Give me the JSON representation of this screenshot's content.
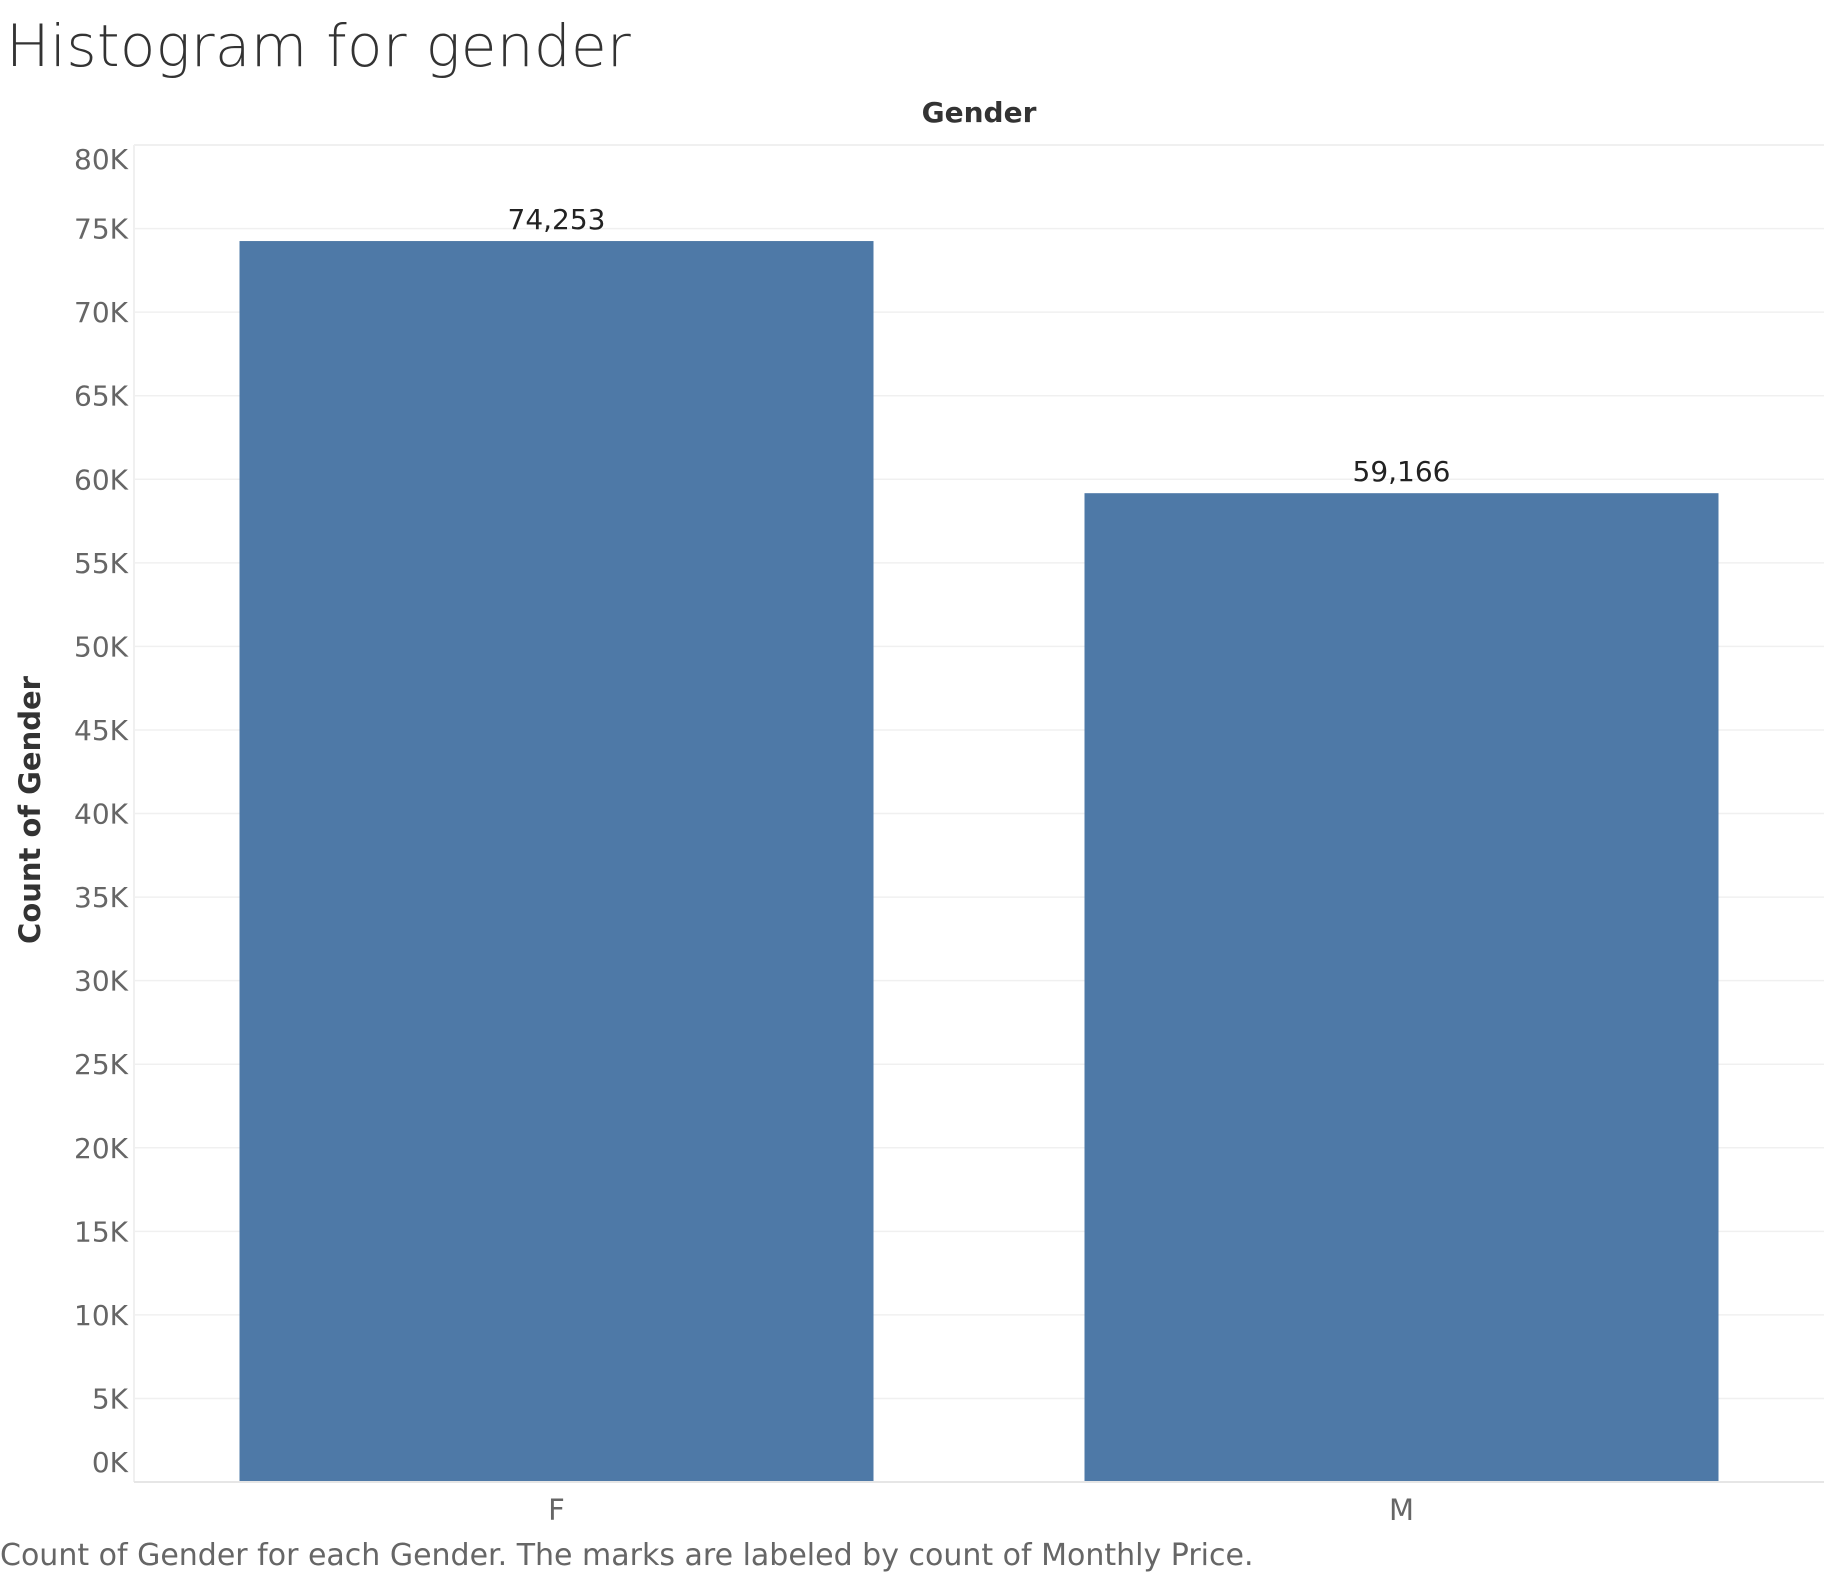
{
  "page": {
    "title": "Histogram for gender",
    "caption": "Count of Gender for each Gender.  The marks are labeled by count of Monthly Price."
  },
  "chart_data": {
    "type": "bar",
    "column_header": "Gender",
    "xlabel": "",
    "ylabel": "Count of Gender",
    "categories": [
      "F",
      "M"
    ],
    "values": [
      74253,
      59166
    ],
    "data_labels": [
      "74,253",
      "59,166"
    ],
    "ylim": [
      0,
      80000
    ],
    "yticks": [
      0,
      5000,
      10000,
      15000,
      20000,
      25000,
      30000,
      35000,
      40000,
      45000,
      50000,
      55000,
      60000,
      65000,
      70000,
      75000,
      80000
    ],
    "ytick_labels": [
      "0K",
      "5K",
      "10K",
      "15K",
      "20K",
      "25K",
      "30K",
      "35K",
      "40K",
      "45K",
      "50K",
      "55K",
      "60K",
      "65K",
      "70K",
      "75K",
      "80K"
    ],
    "grid": true,
    "legend": "none",
    "colors": {
      "bar": "#4e79a7",
      "grid": "#f0f0f0",
      "tick_text": "#666666",
      "label_text": "#333333"
    }
  }
}
